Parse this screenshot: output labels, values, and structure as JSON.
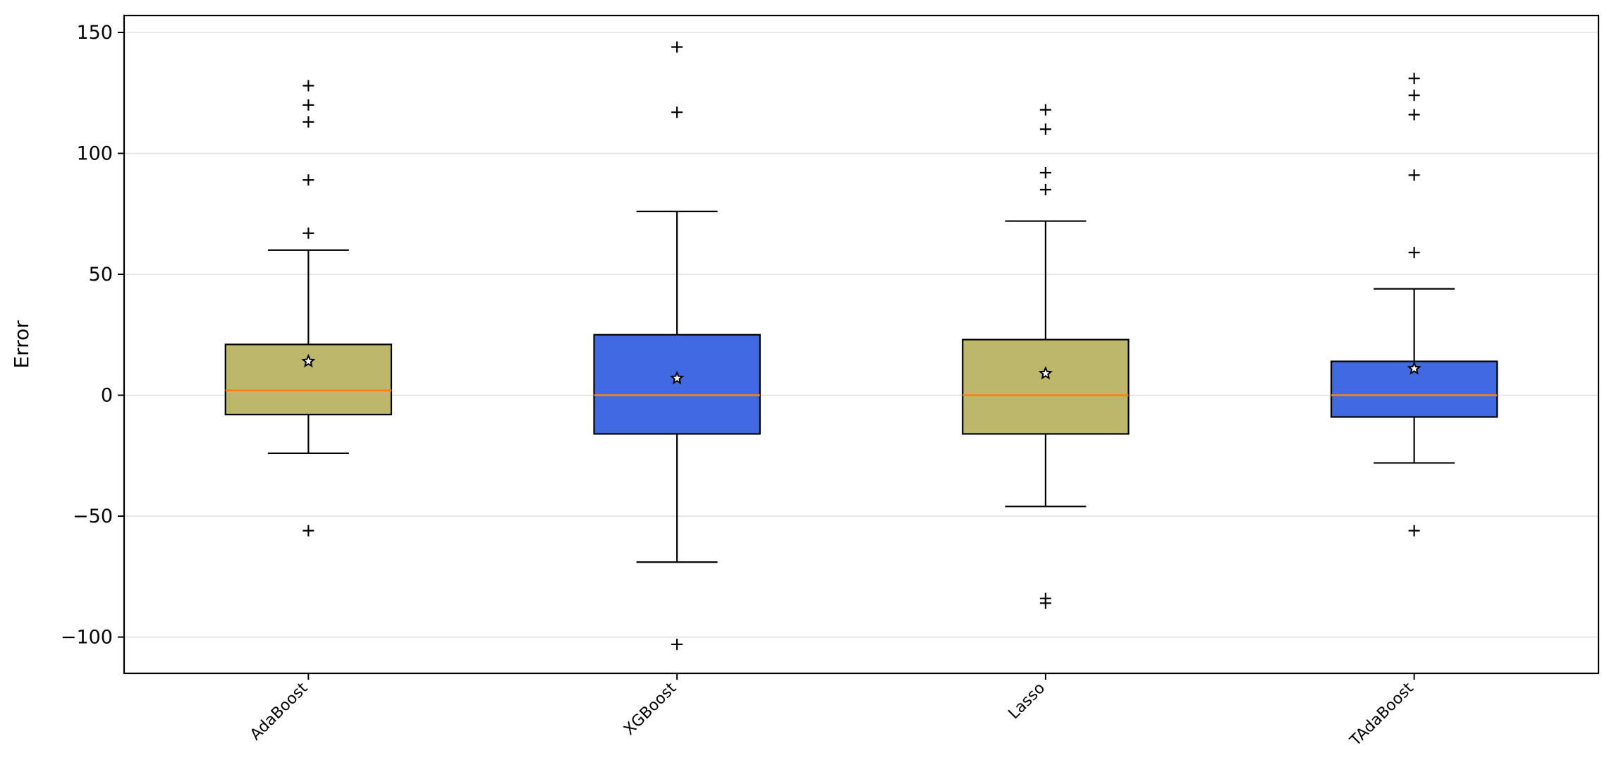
{
  "chart_data": {
    "type": "box",
    "title": "",
    "xlabel": "",
    "ylabel": "Error",
    "ylim": [
      -115,
      157
    ],
    "yticks": [
      -100,
      -50,
      0,
      50,
      100,
      150
    ],
    "ytick_labels": [
      "−100",
      "−50",
      "0",
      "50",
      "100",
      "150"
    ],
    "grid": "horizontal",
    "categories": [
      "AdaBoost",
      "XGBoost",
      "Lasso",
      "TAdaBoost"
    ],
    "boxes": [
      {
        "name": "AdaBoost",
        "color": "#bdb76b",
        "whisker_low": -24,
        "q1": -8,
        "median": 2,
        "q3": 21,
        "whisker_high": 60,
        "mean": 14,
        "outliers": [
          128,
          120,
          113,
          89,
          67,
          -56
        ]
      },
      {
        "name": "XGBoost",
        "color": "#4169e1",
        "whisker_low": -69,
        "q1": -16,
        "median": 0,
        "q3": 25,
        "whisker_high": 76,
        "mean": 7,
        "outliers": [
          144,
          117,
          -103
        ]
      },
      {
        "name": "Lasso",
        "color": "#bdb76b",
        "whisker_low": -46,
        "q1": -16,
        "median": 0,
        "q3": 23,
        "whisker_high": 72,
        "mean": 9,
        "outliers": [
          118,
          110,
          92,
          85,
          -84,
          -86
        ]
      },
      {
        "name": "TAdaBoost",
        "color": "#4169e1",
        "whisker_low": -28,
        "q1": -9,
        "median": 0,
        "q3": 14,
        "whisker_high": 44,
        "mean": 11,
        "outliers": [
          131,
          124,
          116,
          91,
          59,
          -56
        ]
      }
    ],
    "median_color": "#ff7f0e",
    "mean_marker": "star",
    "outlier_marker": "plus"
  }
}
